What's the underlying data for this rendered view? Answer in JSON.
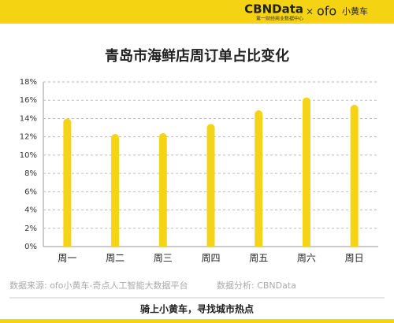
{
  "header": {
    "brand": "CBNData",
    "brand_sub": "第一财经商业数据中心",
    "separator": "×",
    "partner_logo": "ofo",
    "partner_name": "小黄车"
  },
  "chart_data": {
    "type": "bar",
    "title": "青岛市海鲜店周订单占比变化",
    "categories": [
      "周一",
      "周二",
      "周三",
      "周四",
      "周五",
      "周六",
      "周日"
    ],
    "values": [
      14.0,
      12.3,
      12.4,
      13.4,
      14.9,
      16.3,
      15.5
    ],
    "color": "#f5d316",
    "ylim": [
      0,
      18
    ],
    "yticks": [
      {
        "value": 0,
        "label": "0%"
      },
      {
        "value": 2,
        "label": "2%"
      },
      {
        "value": 4,
        "label": "4%"
      },
      {
        "value": 6,
        "label": "6%"
      },
      {
        "value": 8,
        "label": "8%"
      },
      {
        "value": 10,
        "label": "10%"
      },
      {
        "value": 12,
        "label": "12%"
      },
      {
        "value": 14,
        "label": "14%"
      },
      {
        "value": 16,
        "label": "16%"
      },
      {
        "value": 18,
        "label": "18%"
      }
    ],
    "grid": true
  },
  "footer": {
    "source": "数据来源: ofo小黄车-奇点人工智能大数据平台",
    "analysis": "数据分析: CBNData",
    "slogan": "骑上小黄车，寻找城市热点"
  }
}
